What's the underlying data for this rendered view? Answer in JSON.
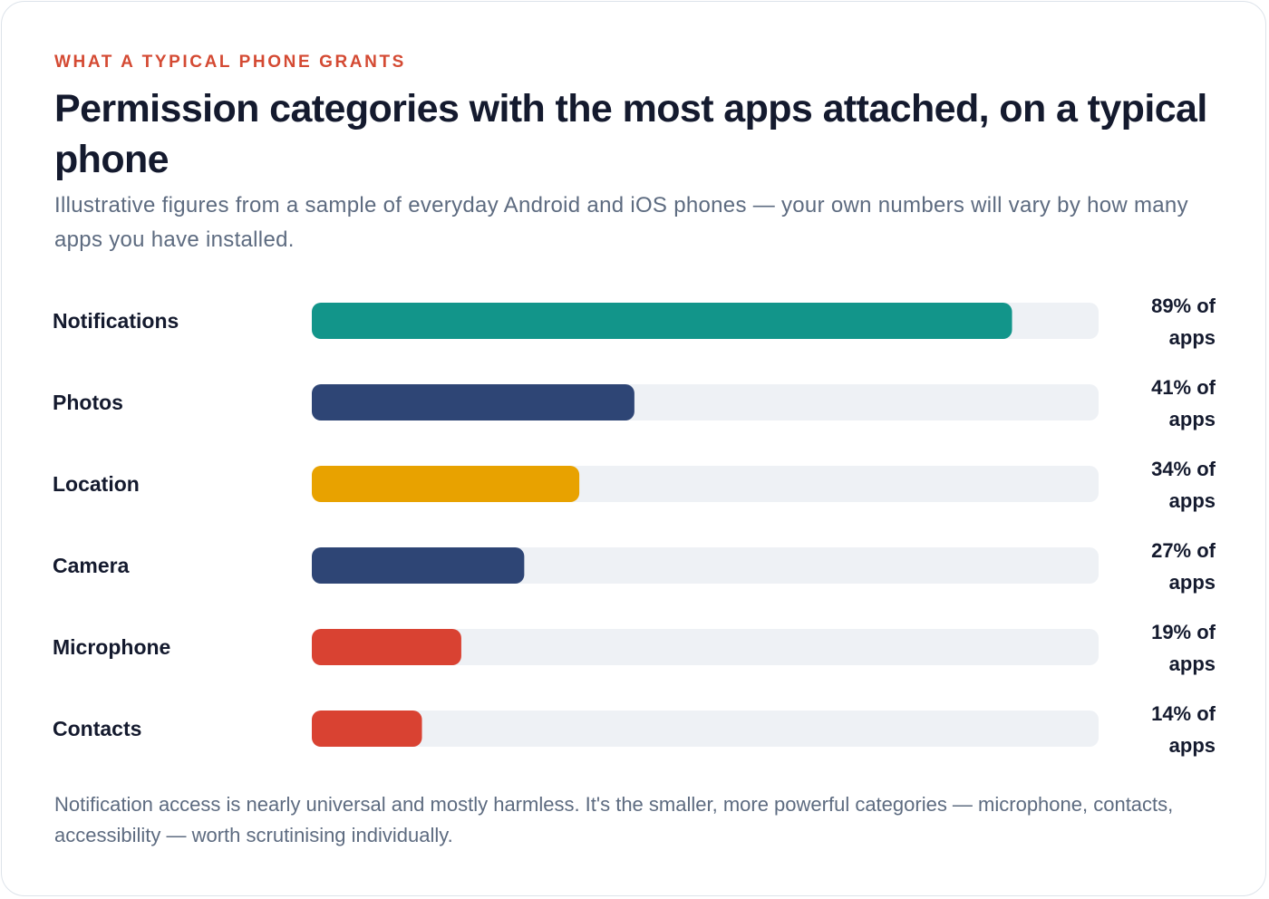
{
  "eyebrow": "WHAT A TYPICAL PHONE GRANTS",
  "title": "Permission categories with the most apps attached, on a typical phone",
  "subtitle": "Illustrative figures from a sample of everyday Android and iOS phones — your own numbers will vary by how many apps you have installed.",
  "footnote": "Notification access is nearly universal and mostly harmless. It's the smaller, more powerful categories — microphone, contacts, accessibility — worth scrutinising individually.",
  "colors": {
    "track": "#eef1f5",
    "teal": "#12958a",
    "navy": "#2e4575",
    "amber": "#e8a200",
    "red": "#d94232"
  },
  "chart_data": {
    "type": "bar",
    "orientation": "horizontal",
    "categories": [
      "Notifications",
      "Photos",
      "Location",
      "Camera",
      "Microphone",
      "Contacts"
    ],
    "values": [
      89,
      41,
      34,
      27,
      19,
      14
    ],
    "value_suffix": "% of apps",
    "value_labels": [
      [
        "89% of",
        "apps"
      ],
      [
        "41% of",
        "apps"
      ],
      [
        "34% of",
        "apps"
      ],
      [
        "27% of",
        "apps"
      ],
      [
        "19% of",
        "apps"
      ],
      [
        "14% of",
        "apps"
      ]
    ],
    "bar_colors": [
      "#12958a",
      "#2e4575",
      "#e8a200",
      "#2e4575",
      "#d94232",
      "#d94232"
    ],
    "xlim": [
      0,
      100
    ],
    "grid": false,
    "legend": "none"
  }
}
